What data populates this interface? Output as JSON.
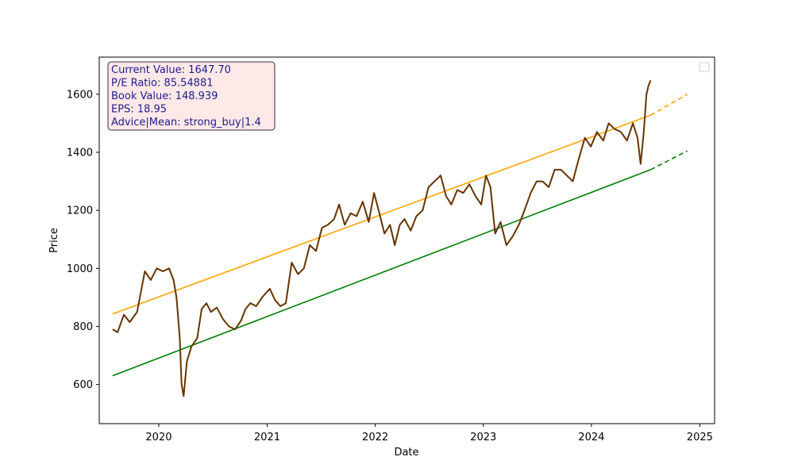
{
  "chart_data": {
    "type": "line",
    "xlabel": "Date",
    "ylabel": "Price",
    "xlim": [
      "2019-06-14",
      "2025-02-20"
    ],
    "ylim": [
      465,
      1728
    ],
    "x_ticks": [
      "2020",
      "2021",
      "2022",
      "2023",
      "2024",
      "2025"
    ],
    "y_ticks": [
      600,
      800,
      1000,
      1200,
      1400,
      1600
    ],
    "grid": false,
    "info_box": {
      "lines": [
        "Current Value: 1647.70",
        "P/E Ratio: 85.54881",
        "Book Value: 148.939",
        "EPS: 18.95",
        "Advice|Mean: strong_buy|1.4"
      ]
    },
    "series": [
      {
        "kind": "price",
        "color": "#663300",
        "x": [
          "2019-07-29",
          "2019-08-15",
          "2019-09-05",
          "2019-09-25",
          "2019-10-20",
          "2019-11-15",
          "2019-12-05",
          "2019-12-25",
          "2020-01-15",
          "2020-02-05",
          "2020-02-20",
          "2020-03-01",
          "2020-03-12",
          "2020-03-18",
          "2020-03-25",
          "2020-04-05",
          "2020-04-20",
          "2020-05-10",
          "2020-05-25",
          "2020-06-10",
          "2020-06-25",
          "2020-07-15",
          "2020-08-05",
          "2020-08-25",
          "2020-09-15",
          "2020-10-05",
          "2020-10-20",
          "2020-11-05",
          "2020-11-25",
          "2020-12-15",
          "2021-01-10",
          "2021-01-28",
          "2021-02-15",
          "2021-03-05",
          "2021-03-25",
          "2021-04-15",
          "2021-05-05",
          "2021-05-25",
          "2021-06-15",
          "2021-07-05",
          "2021-07-25",
          "2021-08-15",
          "2021-09-01",
          "2021-09-20",
          "2021-10-10",
          "2021-10-30",
          "2021-11-20",
          "2021-12-10",
          "2021-12-28",
          "2022-01-15",
          "2022-02-01",
          "2022-02-20",
          "2022-03-08",
          "2022-03-25",
          "2022-04-10",
          "2022-05-01",
          "2022-05-20",
          "2022-06-10",
          "2022-06-30",
          "2022-07-20",
          "2022-08-10",
          "2022-08-28",
          "2022-09-15",
          "2022-10-05",
          "2022-10-25",
          "2022-11-15",
          "2022-12-05",
          "2022-12-25",
          "2023-01-10",
          "2023-01-25",
          "2023-02-10",
          "2023-02-28",
          "2023-03-20",
          "2023-04-10",
          "2023-05-01",
          "2023-05-20",
          "2023-06-10",
          "2023-06-30",
          "2023-07-20",
          "2023-08-10",
          "2023-08-30",
          "2023-09-20",
          "2023-10-10",
          "2023-10-30",
          "2023-11-20",
          "2023-12-10",
          "2023-12-30",
          "2024-01-20",
          "2024-02-10",
          "2024-02-28",
          "2024-03-20",
          "2024-04-10",
          "2024-04-30",
          "2024-05-20",
          "2024-06-05",
          "2024-06-15",
          "2024-06-25",
          "2024-07-05",
          "2024-07-12",
          "2024-07-19"
        ],
        "y": [
          790,
          780,
          840,
          815,
          850,
          990,
          960,
          1000,
          990,
          1000,
          960,
          900,
          760,
          600,
          560,
          680,
          730,
          760,
          860,
          880,
          850,
          865,
          825,
          800,
          790,
          820,
          860,
          880,
          870,
          900,
          930,
          890,
          870,
          880,
          1020,
          980,
          1000,
          1080,
          1060,
          1140,
          1150,
          1170,
          1220,
          1150,
          1190,
          1180,
          1230,
          1160,
          1260,
          1190,
          1120,
          1150,
          1080,
          1150,
          1170,
          1130,
          1180,
          1200,
          1280,
          1300,
          1320,
          1250,
          1220,
          1270,
          1260,
          1290,
          1250,
          1220,
          1320,
          1280,
          1120,
          1160,
          1080,
          1110,
          1150,
          1200,
          1260,
          1300,
          1300,
          1280,
          1340,
          1340,
          1320,
          1300,
          1380,
          1450,
          1420,
          1470,
          1440,
          1500,
          1480,
          1470,
          1440,
          1500,
          1450,
          1360,
          1460,
          1600,
          1630,
          1648
        ]
      },
      {
        "kind": "trend",
        "color": "#ffa500",
        "x": [
          "2019-07-29",
          "2024-07-19"
        ],
        "y": [
          843,
          1528
        ]
      },
      {
        "kind": "trend-projection",
        "color": "#ffa500",
        "dashed": true,
        "x": [
          "2024-07-19",
          "2024-11-20"
        ],
        "y": [
          1528,
          1600
        ]
      },
      {
        "kind": "support",
        "color": "#008000",
        "x": [
          "2019-07-29",
          "2024-07-19"
        ],
        "y": [
          630,
          1340
        ]
      },
      {
        "kind": "support-projection",
        "color": "#008000",
        "dashed": true,
        "x": [
          "2024-07-19",
          "2024-11-20"
        ],
        "y": [
          1340,
          1405
        ]
      }
    ]
  }
}
